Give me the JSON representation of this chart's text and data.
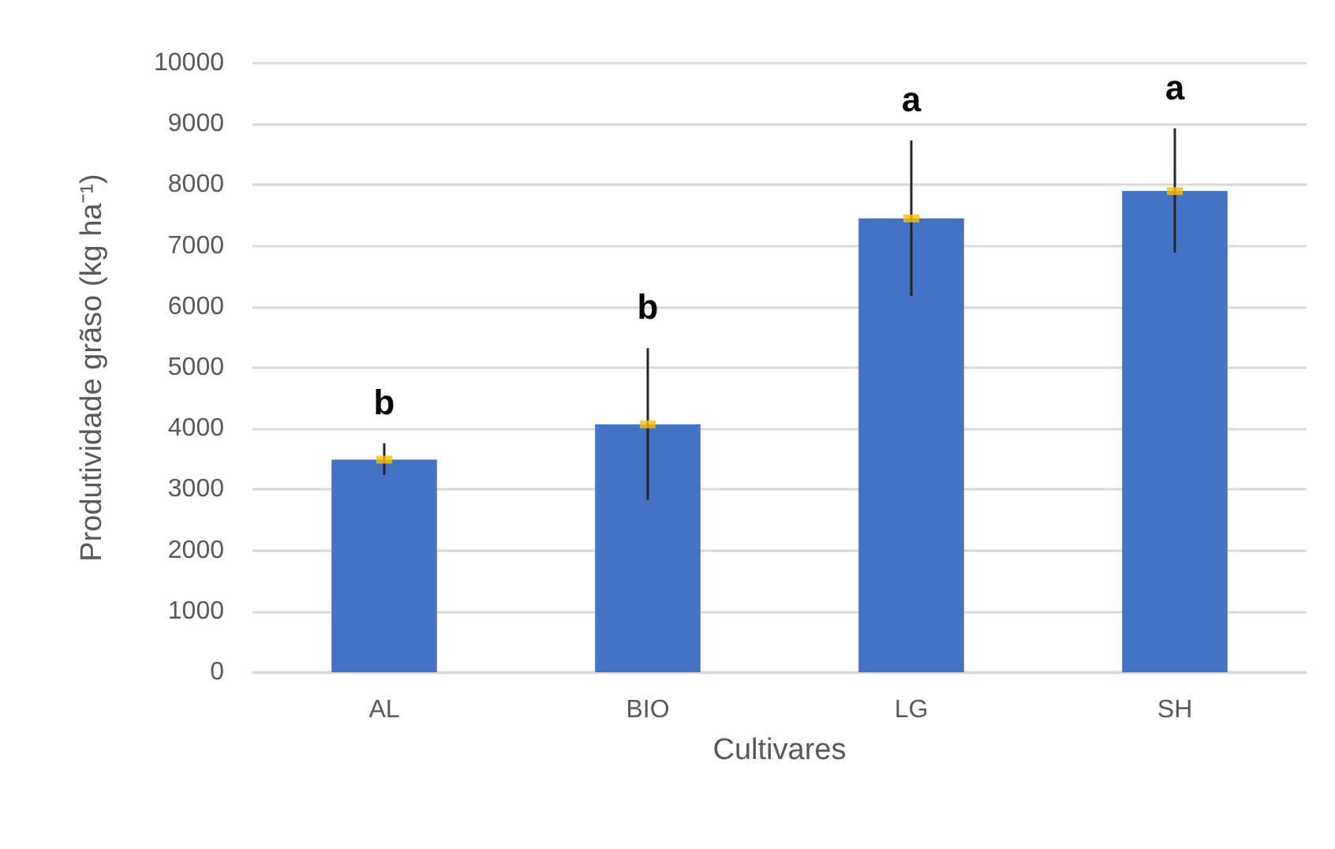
{
  "chart_data": {
    "type": "bar",
    "xlabel": "Cultivares",
    "ylabel": "Produtividade grãso (kg ha⁻¹)",
    "categories": [
      "AL",
      "BIO",
      "LG",
      "SH"
    ],
    "series": [
      {
        "color": "#4472c4",
        "values": [
          3490,
          4070,
          7450,
          7900
        ],
        "errors": [
          [
            3240,
            3760
          ],
          [
            2830,
            5320
          ],
          [
            6180,
            8730
          ],
          [
            6890,
            8930
          ]
        ]
      },
      {
        "type": "scatter",
        "color": "#ffc000",
        "x": [
          "AL",
          "BIO",
          "LG",
          "SH"
        ],
        "values": [
          3490,
          4070,
          7450,
          7900
        ],
        "marker": "square"
      }
    ],
    "ylim": [
      0,
      10000
    ],
    "yticks": [
      0,
      1000,
      2000,
      3000,
      4000,
      5000,
      6000,
      7000,
      8000,
      9000,
      10000
    ],
    "grid": "y",
    "annotations": [
      "b",
      "b",
      "a",
      "a"
    ]
  }
}
